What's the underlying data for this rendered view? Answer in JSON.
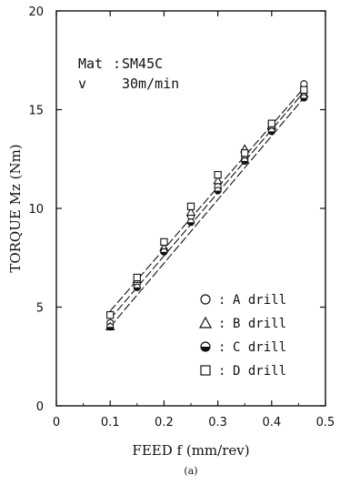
{
  "chart_data": {
    "type": "scatter",
    "xlabel": "FEED f (mm/rev)",
    "ylabel": "TORQUE Mz (Nm)",
    "caption": "(a)",
    "xlim": [
      0,
      0.5
    ],
    "ylim": [
      0,
      20
    ],
    "xticks": [
      "0",
      "0.1",
      "0.2",
      "0.3",
      "0.4",
      "0.5"
    ],
    "yticks": [
      "0",
      "5",
      "10",
      "15",
      "20"
    ],
    "annotation": {
      "mat_label": "Mat",
      "mat_value": "SM45C",
      "v_label": "v",
      "v_value": "30m/min"
    },
    "legend_position": "lower-right",
    "series": [
      {
        "name": "A drill",
        "marker": "circle-open",
        "legend_text": "A drill",
        "x": [
          0.1,
          0.15,
          0.2,
          0.25,
          0.3,
          0.35,
          0.4,
          0.46,
          0.46
        ],
        "y": [
          4.2,
          6.2,
          7.9,
          9.6,
          11.1,
          12.5,
          14.0,
          15.9,
          16.3
        ]
      },
      {
        "name": "B drill",
        "marker": "triangle-open",
        "legend_text": "B drill",
        "x": [
          0.1,
          0.15,
          0.2,
          0.25,
          0.3,
          0.35,
          0.4,
          0.46
        ],
        "y": [
          4.0,
          6.4,
          8.0,
          9.8,
          11.4,
          13.0,
          14.2,
          15.8
        ]
      },
      {
        "name": "C drill",
        "marker": "circle-half",
        "legend_text": "C drill",
        "x": [
          0.1,
          0.15,
          0.2,
          0.25,
          0.3,
          0.35,
          0.4,
          0.46
        ],
        "y": [
          4.0,
          6.0,
          7.8,
          9.3,
          10.9,
          12.4,
          13.9,
          15.6
        ]
      },
      {
        "name": "D drill",
        "marker": "square-open",
        "legend_text": "D drill",
        "x": [
          0.1,
          0.15,
          0.2,
          0.25,
          0.3,
          0.35,
          0.4,
          0.46
        ],
        "y": [
          4.6,
          6.5,
          8.3,
          10.1,
          11.7,
          12.8,
          14.3,
          16.0
        ]
      }
    ],
    "fit_lines": [
      {
        "x": [
          0.1,
          0.46
        ],
        "y": [
          4.8,
          16.1
        ]
      },
      {
        "x": [
          0.1,
          0.46
        ],
        "y": [
          4.4,
          15.9
        ]
      },
      {
        "x": [
          0.1,
          0.46
        ],
        "y": [
          4.0,
          15.6
        ]
      }
    ]
  }
}
